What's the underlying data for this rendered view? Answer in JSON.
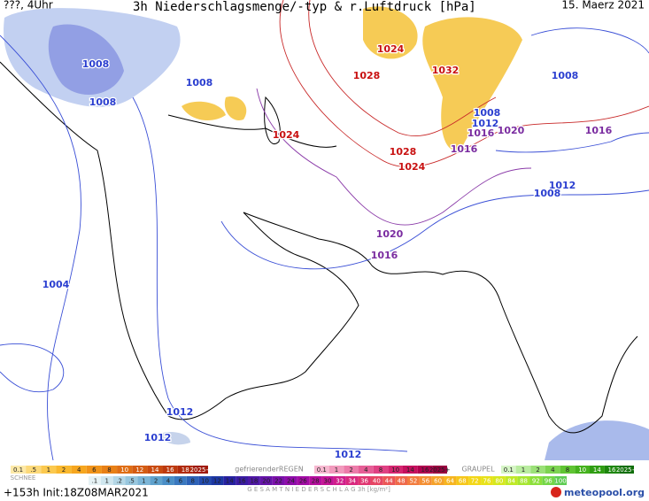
{
  "header": {
    "left": "???, 4Uhr",
    "title": "3h Niederschlagsmenge/-typ & r.Luftdruck [hPa]",
    "date": "15. Maerz 2021"
  },
  "isobar_labels": [
    {
      "value": 1008,
      "color": "#2b3fd0"
    },
    {
      "value": 1008,
      "color": "#2b3fd0"
    },
    {
      "value": 1008,
      "color": "#2b3fd0"
    },
    {
      "value": 1024,
      "color": "#c81010"
    },
    {
      "value": 1028,
      "color": "#c81010"
    },
    {
      "value": 1032,
      "color": "#c81010"
    },
    {
      "value": 1024,
      "color": "#c81010"
    },
    {
      "value": 1028,
      "color": "#c81010"
    },
    {
      "value": 1024,
      "color": "#c81010"
    },
    {
      "value": 1008,
      "color": "#2b3fd0"
    },
    {
      "value": 1008,
      "color": "#2b3fd0"
    },
    {
      "value": 1012,
      "color": "#2b3fd0"
    },
    {
      "value": 1016,
      "color": "#7a2ca0"
    },
    {
      "value": 1020,
      "color": "#7a2ca0"
    },
    {
      "value": 1016,
      "color": "#7a2ca0"
    },
    {
      "value": 1016,
      "color": "#7a2ca0"
    },
    {
      "value": 1012,
      "color": "#2b3fd0"
    },
    {
      "value": 1008,
      "color": "#2b3fd0"
    },
    {
      "value": 1020,
      "color": "#7a2ca0"
    },
    {
      "value": 1016,
      "color": "#7a2ca0"
    },
    {
      "value": 1004,
      "color": "#2b3fd0"
    },
    {
      "value": 1012,
      "color": "#2b3fd0"
    },
    {
      "value": 1012,
      "color": "#2b3fd0"
    },
    {
      "value": 1012,
      "color": "#2b3fd0"
    }
  ],
  "legend": {
    "snow": {
      "name": "SCHNEE",
      "labels": [
        "0.1",
        ".5",
        "1",
        "2",
        "4",
        "6",
        "8",
        "10",
        "12",
        "14",
        "16",
        "18",
        "2025+"
      ],
      "colors": [
        "#fde9a8",
        "#fcd97a",
        "#fbc94f",
        "#f9b82e",
        "#f6a61f",
        "#f0931a",
        "#e88016",
        "#df6e14",
        "#d45c12",
        "#c94b10",
        "#bd3a0e",
        "#b02a0c",
        "#a01a0a"
      ]
    },
    "freezing_rain": {
      "name": "gefrierenderREGEN",
      "labels": [
        "0.1",
        "1",
        "2",
        "4",
        "8",
        "10",
        "14",
        "16",
        "2025+"
      ],
      "colors": [
        "#f7b8d0",
        "#f29abd",
        "#ec7caa",
        "#e65e96",
        "#df4183",
        "#d52670",
        "#c5105e",
        "#b0004e",
        "#98003f"
      ]
    },
    "graupel": {
      "name": "GRAUPEL",
      "labels": [
        "0.1",
        "1",
        "2",
        "4",
        "8",
        "10",
        "14",
        "16",
        "2025+"
      ],
      "colors": [
        "#d6f5c6",
        "#b9ec9f",
        "#9be078",
        "#7dd352",
        "#5fc433",
        "#45b21d",
        "#2f9d12",
        "#1d860c",
        "#0f6e07"
      ]
    },
    "total": {
      "name": "G E S A M T N I E D E R S C H L A G  3h  [kg/m²]",
      "labels": [
        ".1",
        "1",
        ".2",
        ".5",
        "1",
        "2",
        "4",
        "6",
        "8",
        "10",
        "12",
        "14",
        "16",
        "18",
        "20",
        "22",
        "24",
        "26",
        "28",
        "30",
        "32",
        "34",
        "36",
        "40",
        "44",
        "48",
        "52",
        "56",
        "60",
        "64",
        "68",
        "72",
        "76",
        "80",
        "84",
        "88",
        "92",
        "96",
        "100"
      ],
      "colors": [
        "#e6f2f5",
        "#cfe6ee",
        "#b4d7e6",
        "#98c7de",
        "#7cb5d6",
        "#5fa2cd",
        "#4a8ec6",
        "#3a78bf",
        "#2d62b7",
        "#234cae",
        "#1c37a3",
        "#2621a0",
        "#3a1ca3",
        "#4f18a6",
        "#6514a8",
        "#7a10aa",
        "#8f0daa",
        "#a30ca6",
        "#b50e9e",
        "#c41495",
        "#d01d8a",
        "#d9287e",
        "#e03671",
        "#e64664",
        "#eb5757",
        "#ef694a",
        "#f27c3e",
        "#f48f33",
        "#f5a229",
        "#f6b520",
        "#f6c71a",
        "#f3d718",
        "#e8e21a",
        "#d6e81f",
        "#bfe927",
        "#a6e631",
        "#8cdf3b",
        "#74d646",
        "#5ecc52"
      ]
    }
  },
  "footer": {
    "run": "+153h Init:18Z08MAR2021",
    "logo": "meteopool.org"
  }
}
